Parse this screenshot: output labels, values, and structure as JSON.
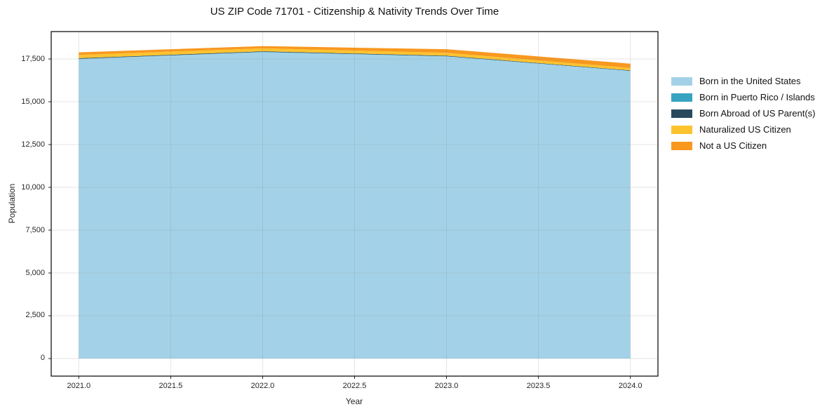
{
  "figure": {
    "background": "#ffffff"
  },
  "chart_data": {
    "type": "area",
    "stacked": true,
    "title": "US ZIP Code 71701 - Citizenship & Nativity Trends Over Time",
    "xlabel": "Year",
    "ylabel": "Population",
    "x": [
      2021,
      2022,
      2023,
      2024
    ],
    "series": [
      {
        "name": "Born in the United States",
        "color": "#A3D2E8",
        "values": [
          17500,
          17900,
          17650,
          16800
        ]
      },
      {
        "name": "Born in Puerto Rico / Islands",
        "color": "#36A3C1",
        "values": [
          10,
          15,
          10,
          10
        ]
      },
      {
        "name": "Born Abroad of US Parent(s)",
        "color": "#28495D",
        "values": [
          35,
          35,
          30,
          25
        ]
      },
      {
        "name": "Naturalized US Citizen",
        "color": "#FDC32F",
        "values": [
          190,
          170,
          170,
          140
        ]
      },
      {
        "name": "Not a US Citizen",
        "color": "#F8981F",
        "values": [
          150,
          130,
          210,
          250
        ]
      }
    ],
    "stack_totals": [
      17885,
      18250,
      18070,
      17225
    ],
    "x_ticks": {
      "values": [
        2021.0,
        2021.5,
        2022.0,
        2022.5,
        2023.0,
        2023.5,
        2024.0
      ],
      "labels": [
        "2021.0",
        "2021.5",
        "2022.0",
        "2022.5",
        "2023.0",
        "2023.5",
        "2024.0"
      ]
    },
    "y_ticks": {
      "values": [
        0,
        2500,
        5000,
        7500,
        10000,
        12500,
        15000,
        17500
      ],
      "labels": [
        "0",
        "2,500",
        "5,000",
        "7,500",
        "10,000",
        "12,500",
        "15,000",
        "17,500"
      ]
    },
    "xlim": [
      2020.85,
      2024.15
    ],
    "ylim": [
      -1025,
      19100
    ],
    "grid": true,
    "legend_position": "right"
  }
}
